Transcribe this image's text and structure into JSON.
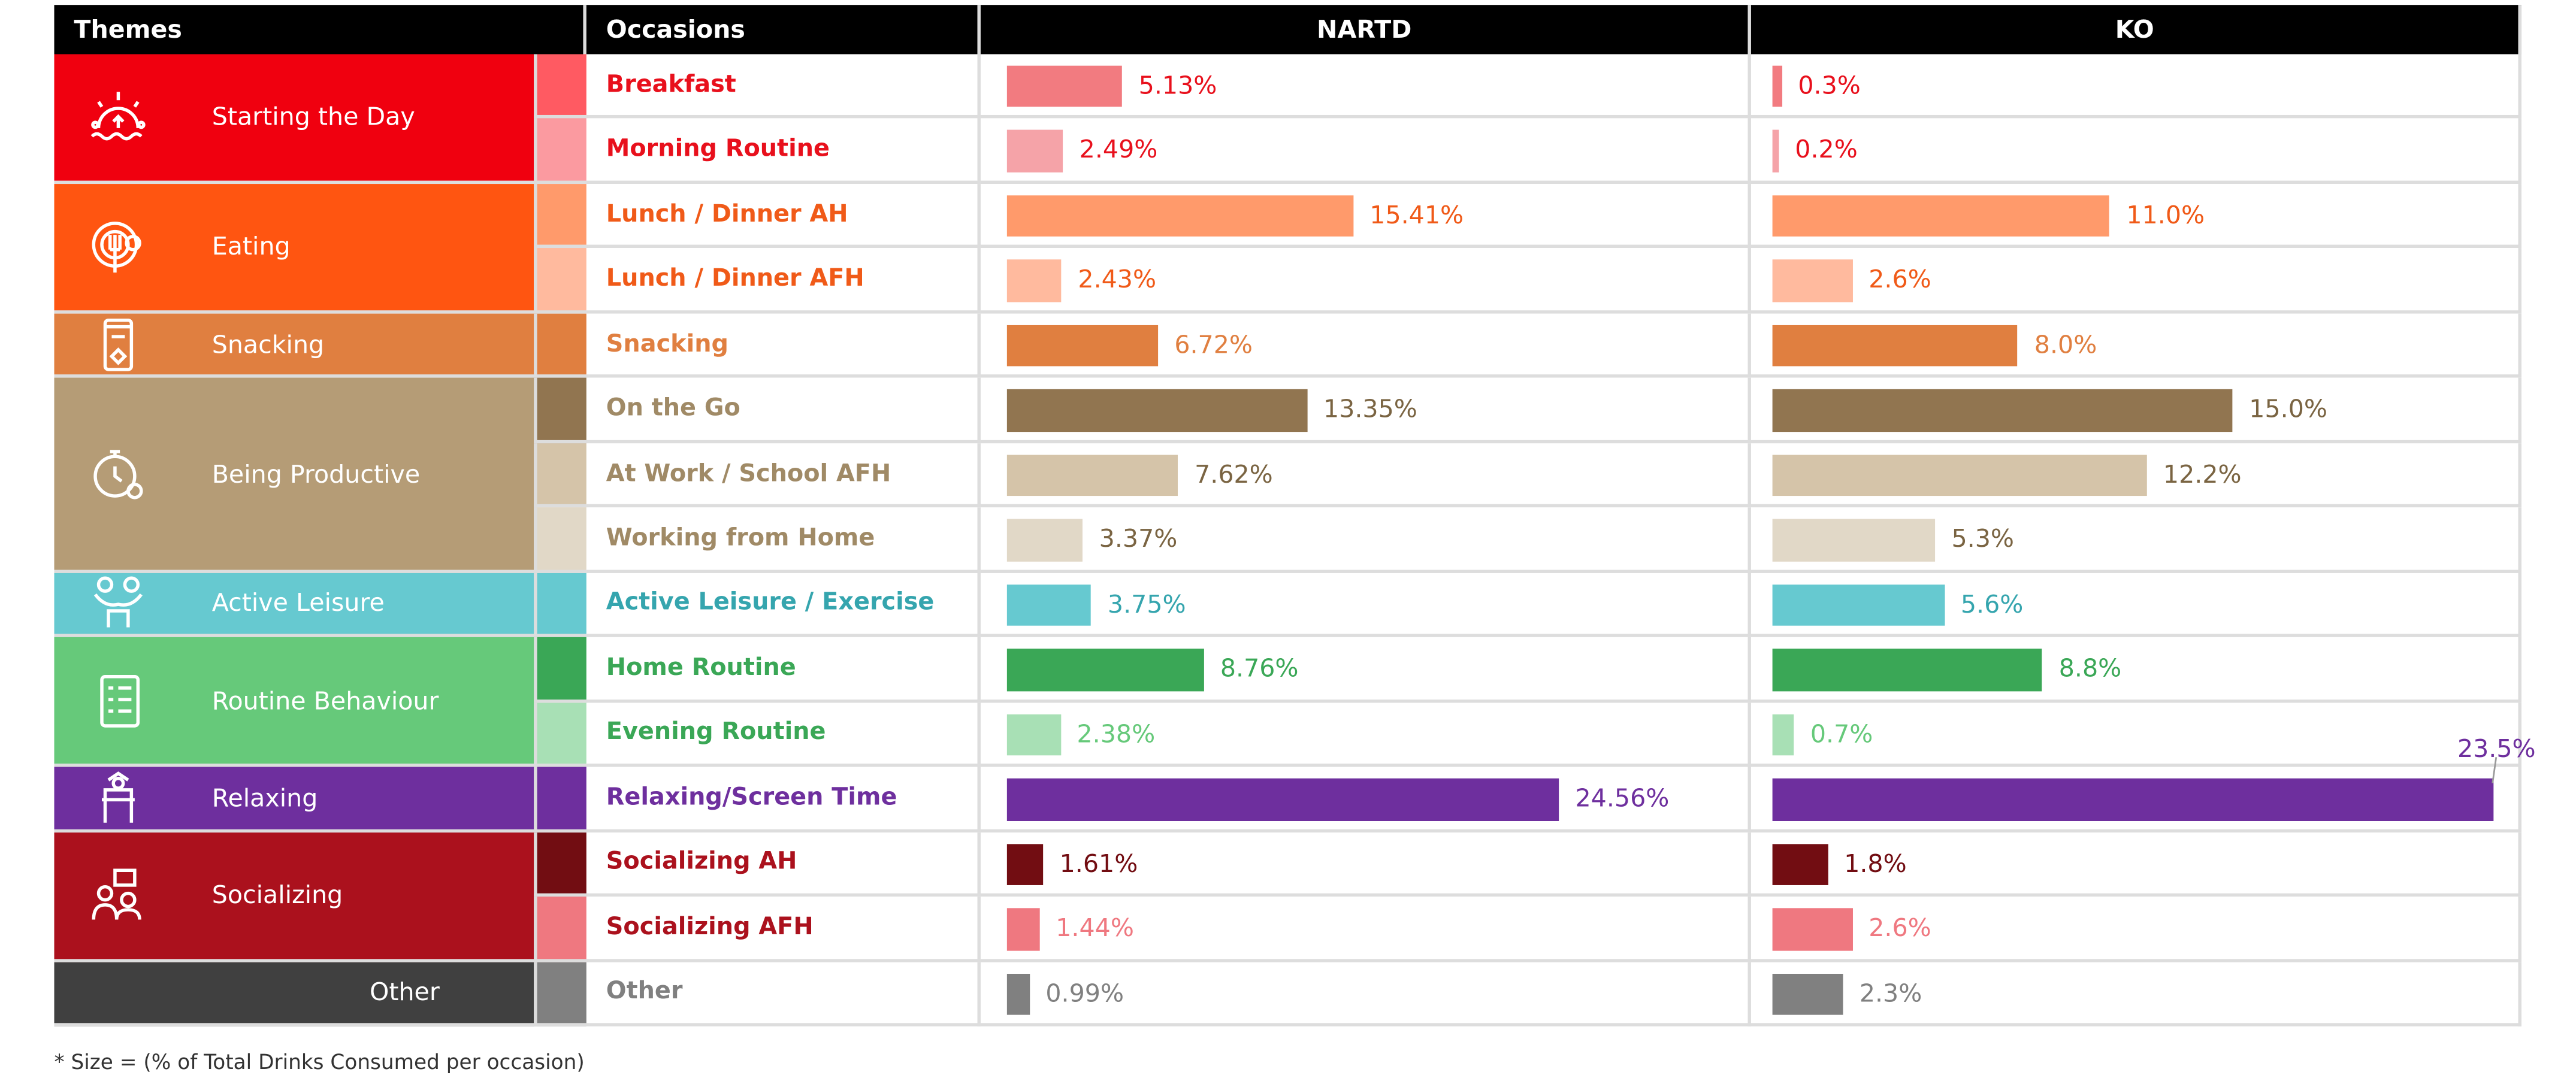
{
  "headers": {
    "themes": "Themes",
    "occasions": "Occasions",
    "nartd": "NARTD",
    "ko": "KO"
  },
  "footnote": "* Size = (% of Total Drinks Consumed per occasion)",
  "themes": [
    {
      "label": "Starting the Day",
      "icon": "sunrise-icon",
      "color": "#f0000f",
      "rows": 2
    },
    {
      "label": "Eating",
      "icon": "plate-fork-icon",
      "color": "#ff5511",
      "rows": 2
    },
    {
      "label": "Snacking",
      "icon": "snack-bag-icon",
      "color": "#e07f40",
      "rows": 1
    },
    {
      "label": "Being Productive",
      "icon": "stopwatch-gear-icon",
      "color": "#b59c76",
      "rows": 3
    },
    {
      "label": "Active Leisure",
      "icon": "people-exercise-icon",
      "color": "#66c9d0",
      "rows": 1
    },
    {
      "label": "Routine Behaviour",
      "icon": "checklist-icon",
      "color": "#66c97a",
      "rows": 2
    },
    {
      "label": "Relaxing",
      "icon": "lounge-chair-icon",
      "color": "#6e2f9e",
      "rows": 1
    },
    {
      "label": "Socializing",
      "icon": "people-chat-icon",
      "color": "#ab111d",
      "rows": 2
    },
    {
      "label": "Other",
      "icon": "",
      "color": "#404040",
      "rows": 1
    }
  ],
  "chart_data": {
    "type": "bar",
    "title": "",
    "categories": [
      "Breakfast",
      "Morning Routine",
      "Lunch / Dinner AH",
      "Lunch / Dinner AFH",
      "Snacking",
      "On the Go",
      "At Work / School AFH",
      "Working from Home",
      "Active Leisure / Exercise",
      "Home Routine",
      "Evening Routine",
      "Relaxing/Screen Time",
      "Socializing AH",
      "Socializing AFH",
      "Other"
    ],
    "series": [
      {
        "name": "NARTD",
        "values": [
          5.13,
          2.49,
          15.41,
          2.43,
          6.72,
          13.35,
          7.62,
          3.37,
          3.75,
          8.76,
          2.38,
          24.56,
          1.61,
          1.44,
          0.99
        ],
        "labels": [
          "5.13%",
          "2.49%",
          "15.41%",
          "2.43%",
          "6.72%",
          "13.35%",
          "7.62%",
          "3.37%",
          "3.75%",
          "8.76%",
          "2.38%",
          "24.56%",
          "1.61%",
          "1.44%",
          "0.99%"
        ]
      },
      {
        "name": "KO",
        "values": [
          0.3,
          0.2,
          11.0,
          2.6,
          8.0,
          15.0,
          12.2,
          5.3,
          5.6,
          8.8,
          0.7,
          23.5,
          1.8,
          2.6,
          2.3
        ],
        "labels": [
          "0.3%",
          "0.2%",
          "11.0%",
          "2.6%",
          "8.0%",
          "15.0%",
          "12.2%",
          "5.3%",
          "5.6%",
          "8.8%",
          "0.7%",
          "23.5%",
          "1.8%",
          "2.6%",
          "2.3%"
        ]
      }
    ],
    "bar_colors": [
      "#f27b80",
      "#f5a3a8",
      "#ff9a6b",
      "#ffba9e",
      "#e07f40",
      "#917550",
      "#d5c4a9",
      "#e1d8c7",
      "#66c9d0",
      "#3aa756",
      "#a8e0b5",
      "#6e2f9e",
      "#720d12",
      "#ef7880",
      "#808080"
    ],
    "swatch_colors": [
      "#ff5a62",
      "#fb9aa0",
      "#ff9a6b",
      "#ffba9e",
      "#e07f40",
      "#917550",
      "#d5c4a9",
      "#e1d8c7",
      "#66c9d0",
      "#3aa756",
      "#a8e0b5",
      "#6e2f9e",
      "#720d12",
      "#ef7880",
      "#808080"
    ],
    "text_colors": [
      "#e8101c",
      "#e8101c",
      "#f05a18",
      "#f05a18",
      "#e07f40",
      "#a08a66",
      "#a08a66",
      "#a08a66",
      "#35a5ae",
      "#3aa756",
      "#3aa756",
      "#6e2f9e",
      "#ab111d",
      "#ab111d",
      "#808080"
    ],
    "value_colors": [
      "#e8101c",
      "#e8101c",
      "#f05a18",
      "#f05a18",
      "#e07f40",
      "#7a6442",
      "#7a6442",
      "#7a6442",
      "#35a5ae",
      "#3aa756",
      "#66c97a",
      "#6e2f9e",
      "#720d12",
      "#ef7880",
      "#808080"
    ],
    "xlim": [
      0,
      25
    ]
  }
}
